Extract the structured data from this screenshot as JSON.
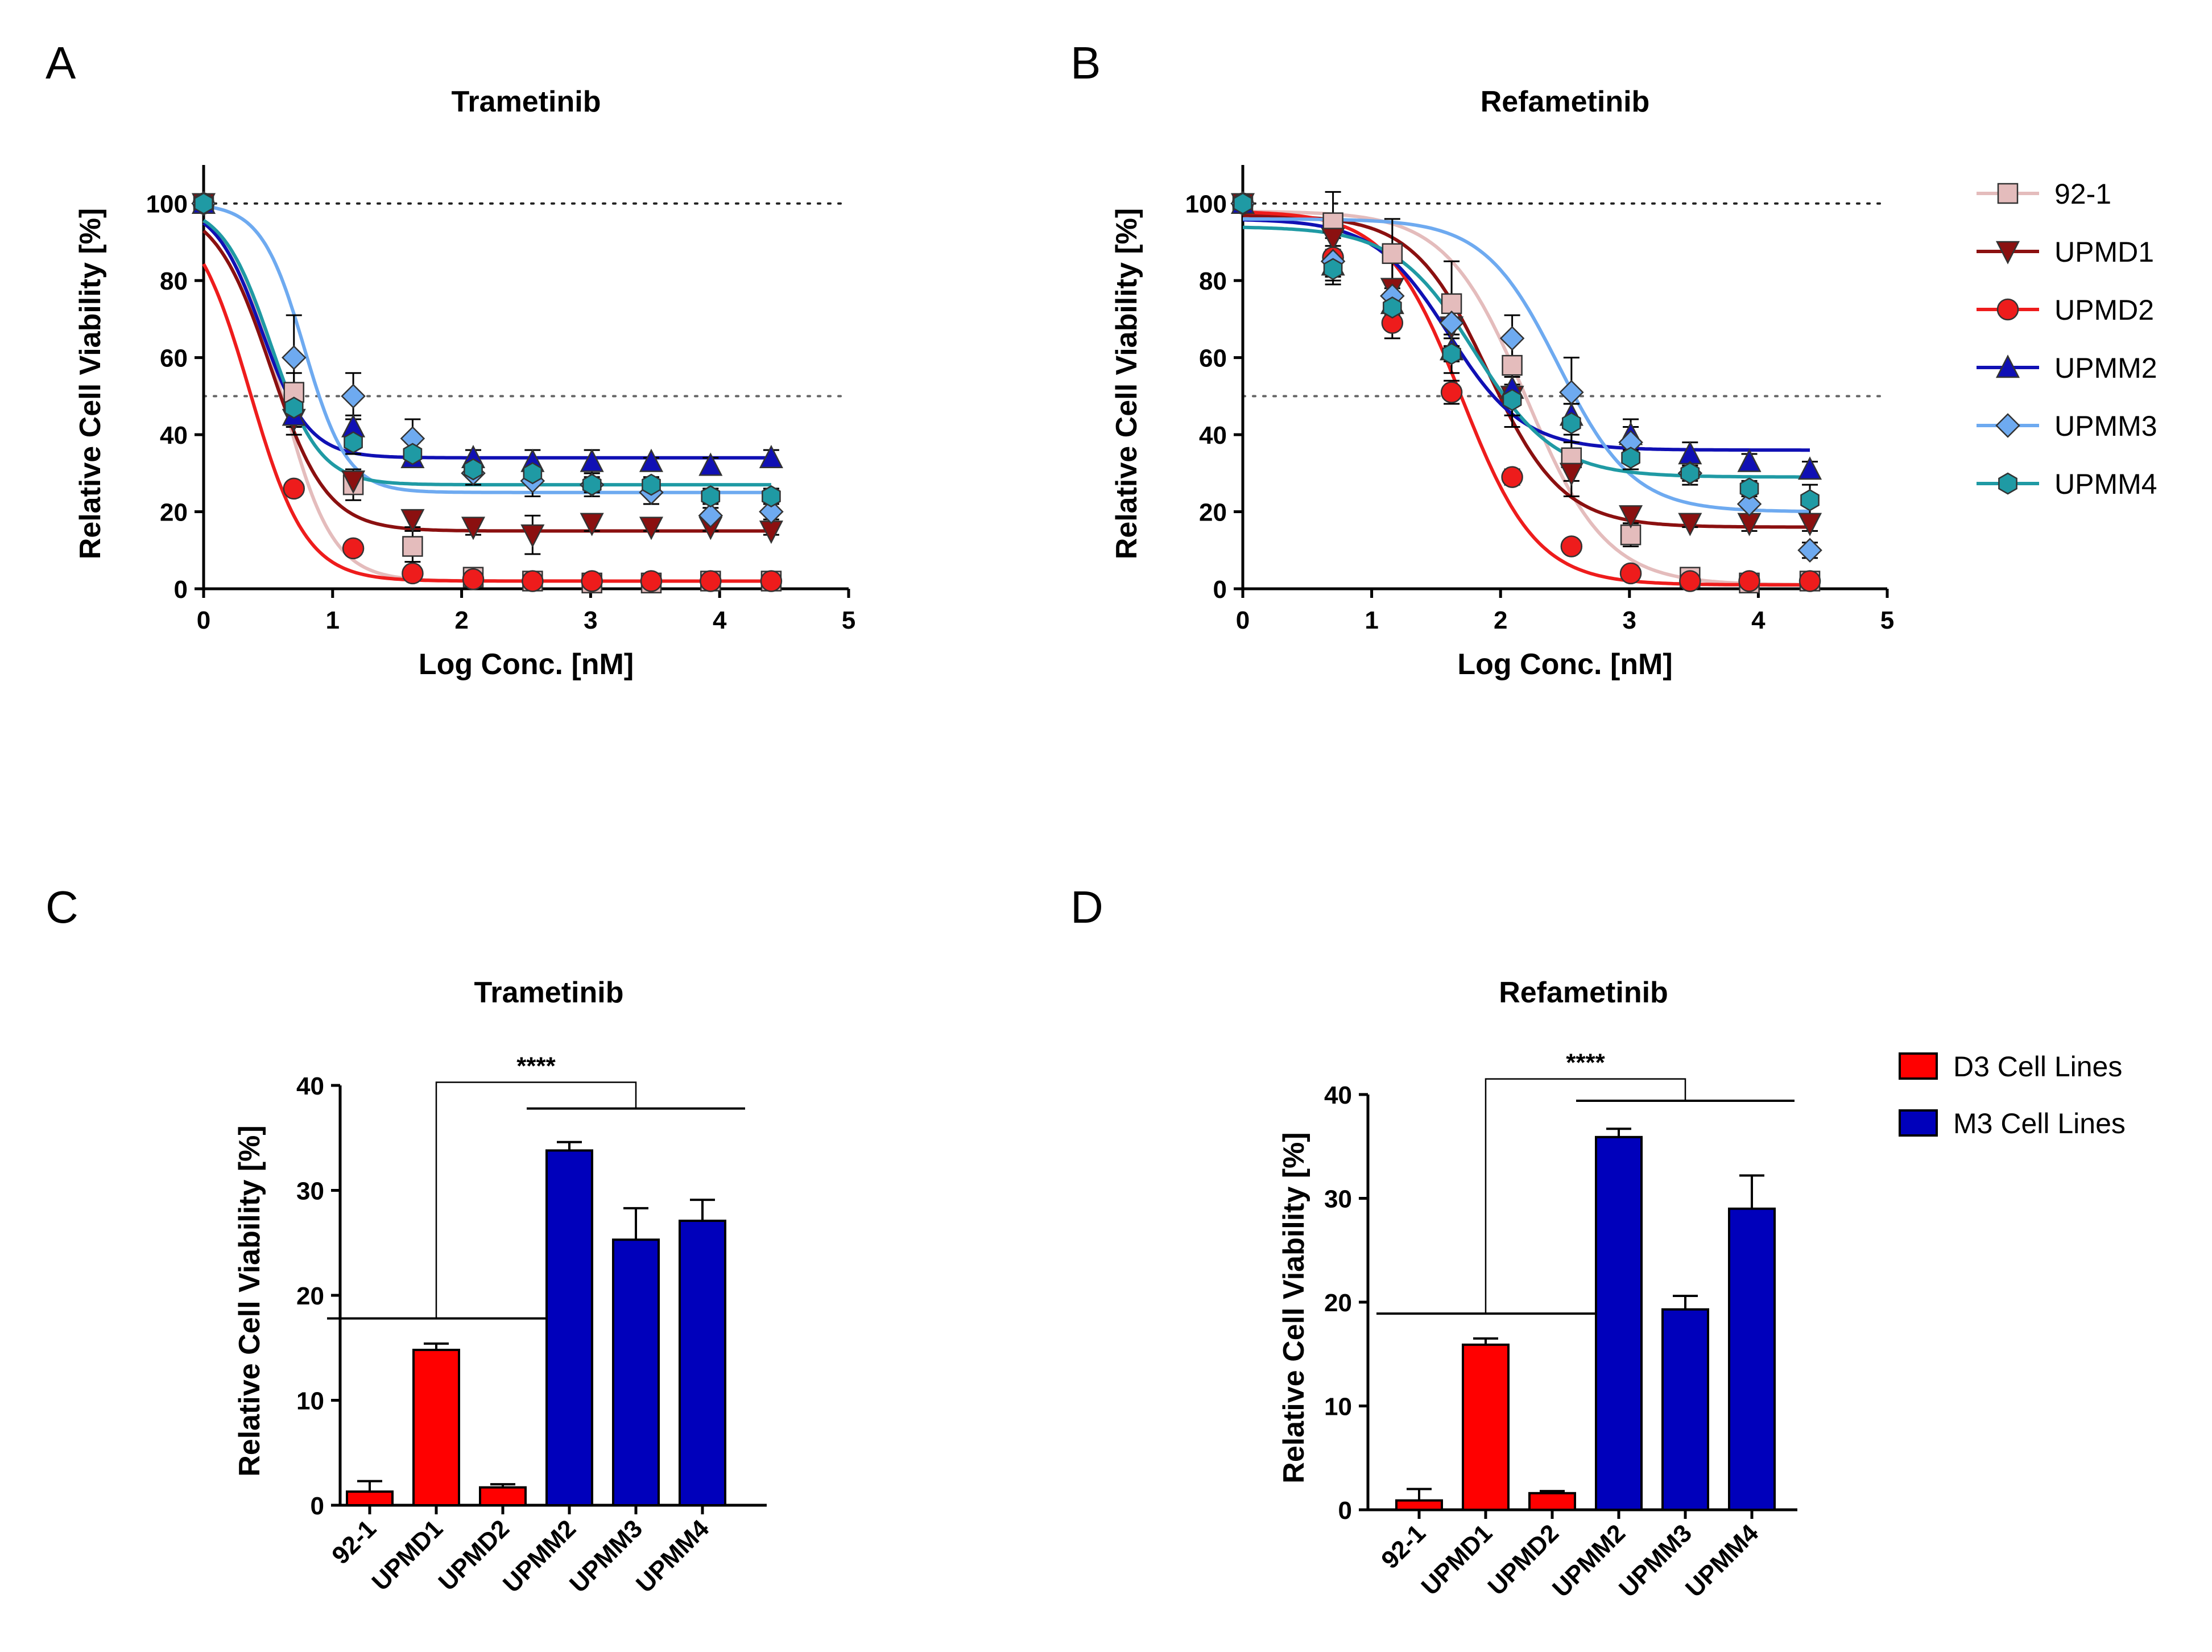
{
  "figure": {
    "panel_labels": [
      "A",
      "B",
      "C",
      "D"
    ]
  },
  "chart_data": [
    {
      "type": "line",
      "panel": "A",
      "title": "Trametinib",
      "xlabel": "Log Conc. [nM]",
      "ylabel": "Relative Cell Viability [%]",
      "xlim": [
        0,
        5
      ],
      "ylim": [
        0,
        110
      ],
      "xticks": [
        "0",
        "1",
        "2",
        "3",
        "4",
        "5"
      ],
      "yticks": [
        "0",
        "20",
        "40",
        "60",
        "80",
        "100"
      ],
      "reference_lines": [
        100,
        50
      ],
      "x": [
        0,
        0.7,
        1.16,
        1.62,
        2.09,
        2.55,
        3.01,
        3.47,
        3.93,
        4.4
      ],
      "series": [
        {
          "name": "92-1",
          "color": "#e4bcbc",
          "marker": "square",
          "values": [
            100,
            51,
            27,
            11,
            3,
            2,
            1.5,
            1.5,
            2,
            2
          ],
          "errors": [
            0,
            5,
            4,
            4,
            1,
            1,
            1,
            1,
            1,
            1
          ],
          "fit": {
            "bottom": 2,
            "ec50": 0.6,
            "hill": 2.2
          }
        },
        {
          "name": "UPMD1",
          "color": "#8b1010",
          "marker": "triangle-down",
          "values": [
            100,
            44,
            28,
            18,
            16,
            14,
            17,
            16,
            16,
            15
          ],
          "errors": [
            0,
            4,
            3,
            2,
            2,
            5,
            2,
            1,
            1,
            1
          ],
          "fit": {
            "bottom": 15,
            "ec50": 0.52,
            "hill": 2.0
          }
        },
        {
          "name": "UPMD2",
          "color": "#ee1c1c",
          "marker": "circle",
          "values": [
            100,
            26,
            10.5,
            4,
            2.5,
            2,
            2,
            2,
            2,
            2
          ],
          "errors": [
            0,
            1,
            1,
            1,
            1,
            1,
            1,
            1,
            1,
            1
          ],
          "fit": {
            "bottom": 2,
            "ec50": 0.36,
            "hill": 2.0
          }
        },
        {
          "name": "UPMM2",
          "color": "#1010b4",
          "marker": "triangle",
          "values": [
            100,
            45,
            42,
            34,
            34,
            33,
            33,
            33,
            32,
            34
          ],
          "errors": [
            0,
            3,
            3,
            2,
            2,
            3,
            3,
            1,
            2,
            2
          ],
          "fit": {
            "bottom": 34,
            "ec50": 0.45,
            "hill": 2.4
          }
        },
        {
          "name": "UPMM3",
          "color": "#6eaaf0",
          "marker": "diamond",
          "values": [
            100,
            60,
            50,
            39,
            30,
            28,
            27,
            25,
            19,
            20
          ],
          "errors": [
            0,
            11,
            6,
            5,
            3,
            4,
            3,
            3,
            2,
            2
          ],
          "fit": {
            "bottom": 25,
            "ec50": 0.78,
            "hill": 2.6
          }
        },
        {
          "name": "UPMM4",
          "color": "#1f9aa4",
          "marker": "hexagon",
          "values": [
            100,
            47,
            38,
            35,
            31,
            30,
            27,
            27,
            24,
            24
          ],
          "errors": [
            0,
            4,
            3,
            3,
            2,
            2,
            2,
            2,
            2,
            2
          ],
          "fit": {
            "bottom": 27,
            "ec50": 0.52,
            "hill": 2.3
          }
        }
      ]
    },
    {
      "type": "line",
      "panel": "B",
      "title": "Refametinib",
      "xlabel": "Log Conc. [nM]",
      "ylabel": "Relative Cell Viability [%]",
      "xlim": [
        0,
        5
      ],
      "ylim": [
        0,
        110
      ],
      "xticks": [
        "0",
        "1",
        "2",
        "3",
        "4",
        "5"
      ],
      "yticks": [
        "0",
        "20",
        "40",
        "60",
        "80",
        "100"
      ],
      "reference_lines": [
        100,
        50
      ],
      "x": [
        0,
        0.7,
        1.16,
        1.62,
        2.09,
        2.55,
        3.01,
        3.47,
        3.93,
        4.4
      ],
      "series": [
        {
          "name": "92-1",
          "color": "#e4bcbc",
          "marker": "square",
          "values": [
            100,
            95,
            87,
            74,
            58,
            34,
            14,
            3,
            1.5,
            2
          ],
          "errors": [
            0,
            8,
            9,
            11,
            6,
            6,
            3,
            1,
            1,
            1
          ],
          "fit": {
            "top": 98,
            "bottom": 1,
            "ec50": 2.2,
            "hill": 1.4
          }
        },
        {
          "name": "UPMD1",
          "color": "#8b1010",
          "marker": "triangle-down",
          "values": [
            100,
            91,
            78,
            68,
            50,
            30,
            19,
            17,
            17,
            17
          ],
          "errors": [
            0,
            6,
            8,
            8,
            8,
            6,
            2,
            1,
            2,
            2
          ],
          "fit": {
            "top": 97,
            "bottom": 16,
            "ec50": 1.9,
            "hill": 1.5
          }
        },
        {
          "name": "UPMD2",
          "color": "#ee1c1c",
          "marker": "circle",
          "values": [
            100,
            86,
            69,
            51,
            29,
            11,
            4,
            2,
            2,
            2
          ],
          "errors": [
            0,
            5,
            4,
            3,
            2,
            1,
            1,
            1,
            1,
            1
          ],
          "fit": {
            "top": 98,
            "bottom": 1,
            "ec50": 1.7,
            "hill": 1.5
          }
        },
        {
          "name": "UPMM2",
          "color": "#1010b4",
          "marker": "triangle",
          "values": [
            100,
            84,
            74,
            62,
            52,
            45,
            40,
            35,
            33,
            31
          ],
          "errors": [
            0,
            4,
            3,
            3,
            3,
            3,
            4,
            3,
            2,
            2
          ],
          "fit": {
            "top": 96,
            "bottom": 36,
            "ec50": 1.6,
            "hill": 1.5
          }
        },
        {
          "name": "UPMM3",
          "color": "#6eaaf0",
          "marker": "diamond",
          "values": [
            100,
            85,
            76,
            69,
            65,
            51,
            38,
            30,
            22,
            10
          ],
          "errors": [
            0,
            4,
            4,
            6,
            6,
            9,
            4,
            3,
            3,
            2
          ],
          "fit": {
            "top": 96,
            "bottom": 20,
            "ec50": 2.45,
            "hill": 1.5
          }
        },
        {
          "name": "UPMM4",
          "color": "#1f9aa4",
          "marker": "hexagon",
          "values": [
            100,
            83,
            73,
            61,
            49,
            43,
            34,
            30,
            26,
            23
          ],
          "errors": [
            0,
            4,
            4,
            5,
            4,
            5,
            3,
            2,
            2,
            4
          ],
          "fit": {
            "top": 94,
            "bottom": 29,
            "ec50": 1.8,
            "hill": 1.4
          }
        }
      ]
    },
    {
      "type": "bar",
      "panel": "C",
      "title": "Trametinib",
      "ylabel": "Relative Cell Viability [%]",
      "ylim": [
        0,
        40
      ],
      "yticks": [
        "0",
        "10",
        "20",
        "30",
        "40"
      ],
      "categories": [
        "92-1",
        "UPMD1",
        "UPMD2",
        "UPMM2",
        "UPMM3",
        "UPMM4"
      ],
      "values": [
        1.3,
        14.8,
        1.7,
        33.8,
        25.3,
        27.1
      ],
      "errors": [
        1.0,
        0.6,
        0.3,
        0.8,
        3.0,
        2.0
      ],
      "groups": [
        "D3 Cell Lines",
        "D3 Cell Lines",
        "D3 Cell Lines",
        "M3 Cell Lines",
        "M3 Cell Lines",
        "M3 Cell Lines"
      ],
      "group_line_levels": {
        "D3 Cell Lines": 17.8,
        "M3 Cell Lines": 37.8,
        "bracket_top": 40.3
      },
      "significance": "****"
    },
    {
      "type": "bar",
      "panel": "D",
      "title": "Refametinib",
      "ylabel": "Relative Cell Viability [%]",
      "ylim": [
        0,
        40
      ],
      "yticks": [
        "0",
        "10",
        "20",
        "30",
        "40"
      ],
      "categories": [
        "92-1",
        "UPMD1",
        "UPMD2",
        "UPMM2",
        "UPMM3",
        "UPMM4"
      ],
      "values": [
        0.9,
        15.9,
        1.6,
        35.9,
        19.3,
        29.0
      ],
      "errors": [
        1.1,
        0.6,
        0.2,
        0.8,
        1.3,
        3.2
      ],
      "groups": [
        "D3 Cell Lines",
        "D3 Cell Lines",
        "D3 Cell Lines",
        "M3 Cell Lines",
        "M3 Cell Lines",
        "M3 Cell Lines"
      ],
      "group_line_levels": {
        "D3 Cell Lines": 18.9,
        "M3 Cell Lines": 39.4,
        "bracket_top": 41.5
      },
      "significance": "****"
    }
  ],
  "legends": {
    "lines": [
      "92-1",
      "UPMD1",
      "UPMD2",
      "UPMM2",
      "UPMM3",
      "UPMM4"
    ],
    "bars": [
      {
        "label": "D3 Cell Lines",
        "color": "#ff0000"
      },
      {
        "label": "M3 Cell Lines",
        "color": "#0000bb"
      }
    ]
  }
}
